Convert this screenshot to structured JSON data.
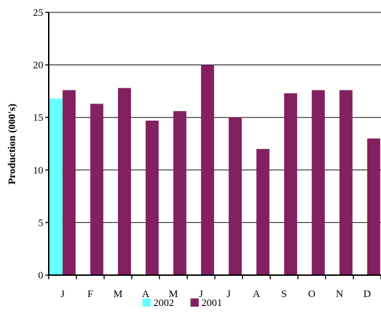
{
  "chart_data": {
    "type": "bar",
    "categories": [
      "J",
      "F",
      "M",
      "A",
      "M",
      "J",
      "J",
      "A",
      "S",
      "O",
      "N",
      "D"
    ],
    "series": [
      {
        "name": "2002",
        "color": "#66FFFF",
        "values": [
          16.8,
          null,
          null,
          null,
          null,
          null,
          null,
          null,
          null,
          null,
          null,
          null
        ]
      },
      {
        "name": "2001",
        "color": "#822060",
        "values": [
          17.6,
          16.3,
          17.8,
          14.7,
          15.6,
          20.0,
          15.0,
          12.0,
          17.3,
          17.6,
          17.6,
          13.0
        ]
      }
    ],
    "ylabel": "Production (000's)",
    "xlabel": "",
    "ylim": [
      0,
      25
    ],
    "yticks": [
      0,
      5,
      10,
      15,
      20,
      25
    ],
    "grid": true,
    "legend": "bottom"
  }
}
